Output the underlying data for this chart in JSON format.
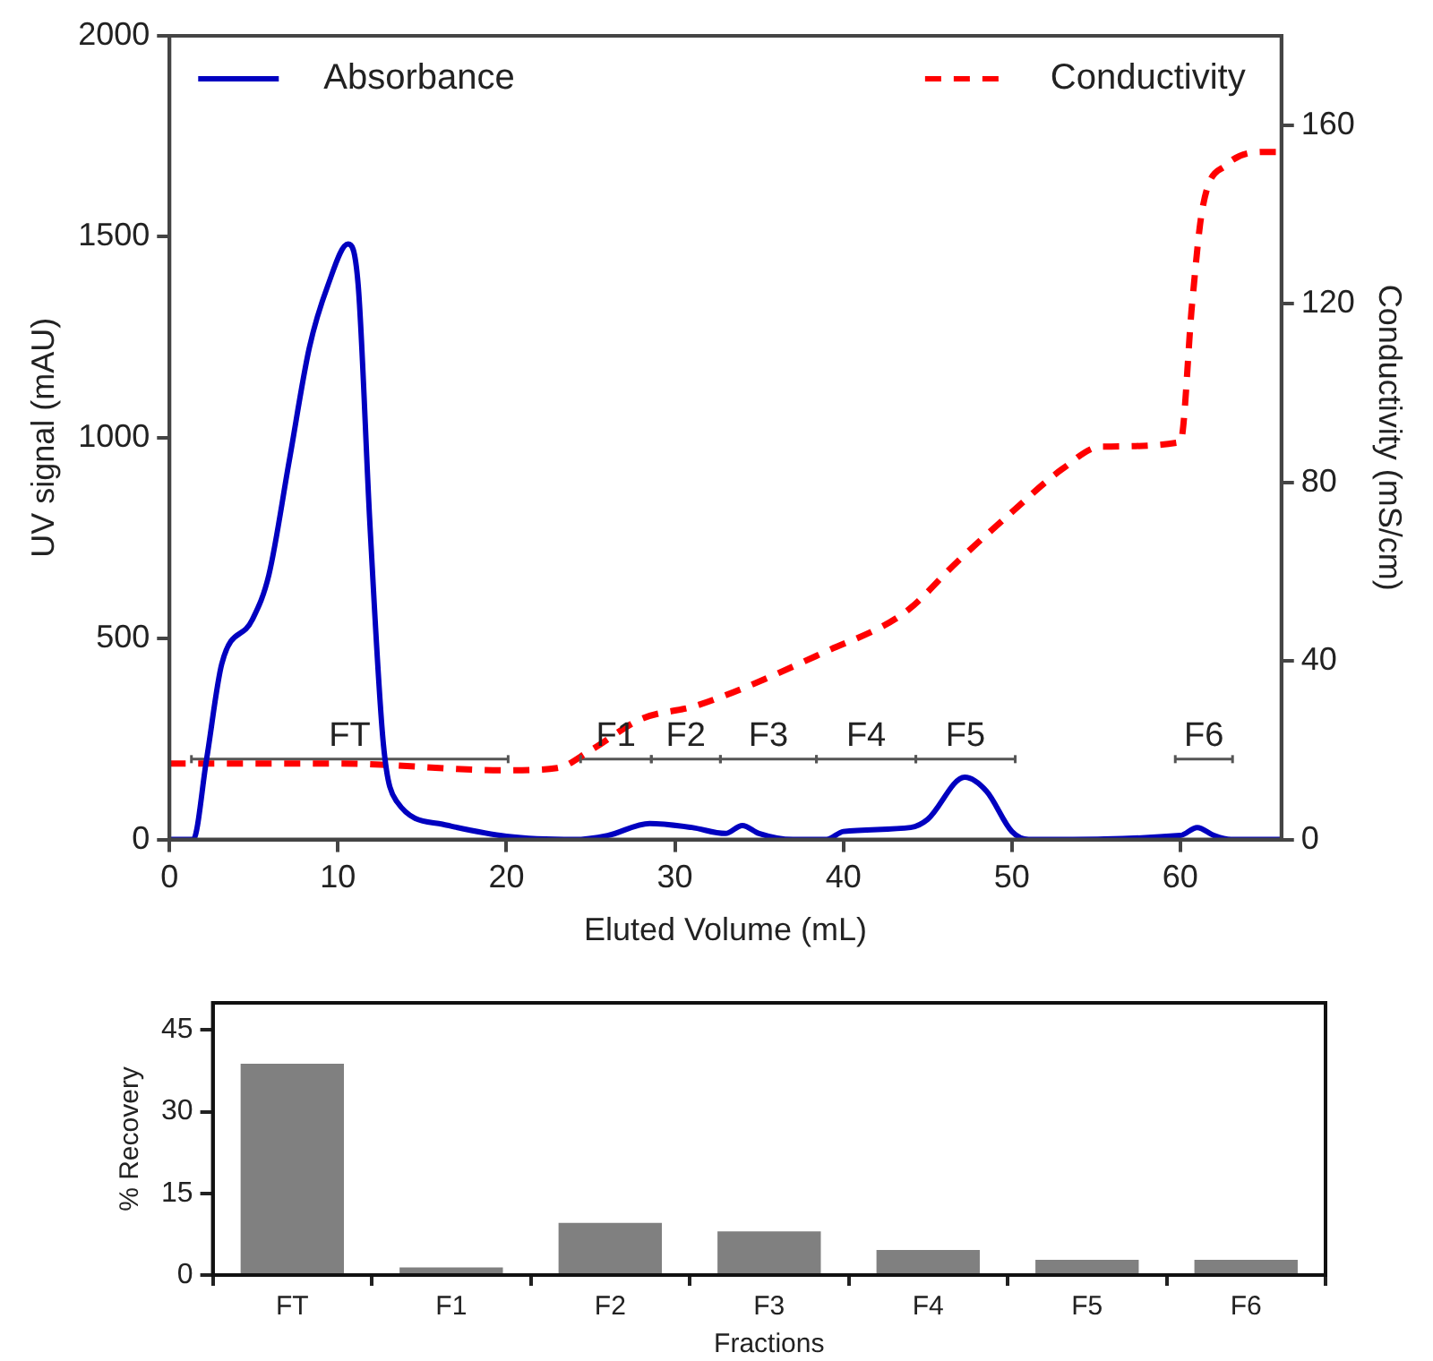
{
  "chart_data": [
    {
      "type": "line",
      "xlabel": "Eluted Volume (mL)",
      "ylabel": "UV signal (mAU)",
      "y2label": "Conductivity (mS/cm)",
      "xlim": [
        0,
        66
      ],
      "xticks": [
        0,
        10,
        20,
        30,
        40,
        50,
        60
      ],
      "ylim": [
        0,
        2000
      ],
      "yticks": [
        0,
        500,
        1000,
        1500,
        2000
      ],
      "y2lim": [
        0,
        180
      ],
      "y2ticks": [
        0,
        40,
        80,
        120,
        160
      ],
      "grid": false,
      "legend": "top",
      "marker": "none",
      "series": [
        {
          "name": "Absorbance",
          "color": "#0000c0",
          "line_style": "solid",
          "x": [
            0,
            1.4,
            2.2,
            3.1,
            4.9,
            5.9,
            7.1,
            8.3,
            9.4,
            10.6,
            11.2,
            11.9,
            12.7,
            13.5,
            16.2,
            20,
            24,
            26,
            28.5,
            31,
            33,
            34,
            35,
            37,
            39,
            40,
            44,
            45,
            47.2,
            48.5,
            50,
            51,
            60,
            61,
            62,
            63,
            66
          ],
          "values": [
            0,
            0,
            200,
            437,
            546,
            659,
            941,
            1224,
            1379,
            1482,
            1379,
            781,
            235,
            94,
            38,
            8,
            0,
            10,
            40,
            30,
            15,
            35,
            15,
            0,
            0,
            20,
            30,
            50,
            155,
            120,
            20,
            0,
            10,
            30,
            10,
            0,
            0
          ]
        },
        {
          "name": "Conductivity",
          "color": "#ff0000",
          "line_style": "dashed",
          "axis": "y2",
          "x": [
            0,
            10,
            20,
            23,
            25,
            28,
            31.3,
            38.9,
            43.7,
            46.7,
            49.9,
            53,
            55.3,
            60,
            60.7,
            61.3,
            62.7,
            65.2,
            66
          ],
          "values": [
            17,
            17,
            15.5,
            16,
            20,
            27,
            30,
            42,
            51,
            62,
            73,
            83,
            88,
            89,
            120,
            141,
            151,
            154,
            154
          ]
        },
        {
          "color": "#555555",
          "line_style": "solid",
          "x": [
            1.3,
            20.1
          ],
          "values": [
            200,
            200
          ],
          "errors": [
            10,
            10
          ]
        },
        {
          "color": "#555555",
          "line_style": "solid",
          "x": [
            24.4,
            28.6
          ],
          "values": [
            200,
            200
          ],
          "errors": [
            10,
            10
          ]
        },
        {
          "color": "#555555",
          "line_style": "solid",
          "x": [
            28.6,
            32.7
          ],
          "values": [
            200,
            200
          ],
          "errors": [
            10,
            10
          ]
        },
        {
          "color": "#555555",
          "line_style": "solid",
          "x": [
            32.7,
            38.4
          ],
          "values": [
            200,
            200
          ],
          "errors": [
            10,
            10
          ]
        },
        {
          "color": "#555555",
          "line_style": "solid",
          "x": [
            38.4,
            44.3
          ],
          "values": [
            200,
            200
          ],
          "errors": [
            10,
            10
          ]
        },
        {
          "color": "#555555",
          "line_style": "solid",
          "x": [
            44.3,
            50.2
          ],
          "values": [
            200,
            200
          ],
          "errors": [
            10,
            10
          ]
        },
        {
          "color": "#555555",
          "line_style": "solid",
          "x": [
            59.7,
            63.1
          ],
          "values": [
            200,
            200
          ],
          "errors": [
            10,
            10
          ]
        }
      ],
      "annotations": [
        {
          "text": "FT",
          "x": 10.7,
          "y": 215
        },
        {
          "text": "F1",
          "x": 26.5,
          "y": 215
        },
        {
          "text": "F2",
          "x": 30.65,
          "y": 215
        },
        {
          "text": "F3",
          "x": 35.55,
          "y": 215
        },
        {
          "text": "F4",
          "x": 41.35,
          "y": 215
        },
        {
          "text": "F5",
          "x": 47.25,
          "y": 215
        },
        {
          "text": "F6",
          "x": 61.4,
          "y": 215
        }
      ]
    },
    {
      "type": "bar",
      "xlabel": "Fractions",
      "ylabel": "% Recovery",
      "categories": [
        "FT",
        "F1",
        "F2",
        "F3",
        "F4",
        "F5",
        "F6"
      ],
      "values": [
        38.8,
        1.4,
        9.6,
        8,
        4.6,
        2.8,
        2.8
      ],
      "color": "#808080",
      "ylim": [
        0,
        50
      ],
      "yticks": [
        0,
        15,
        30,
        45
      ],
      "grid": false,
      "legend": false
    }
  ]
}
